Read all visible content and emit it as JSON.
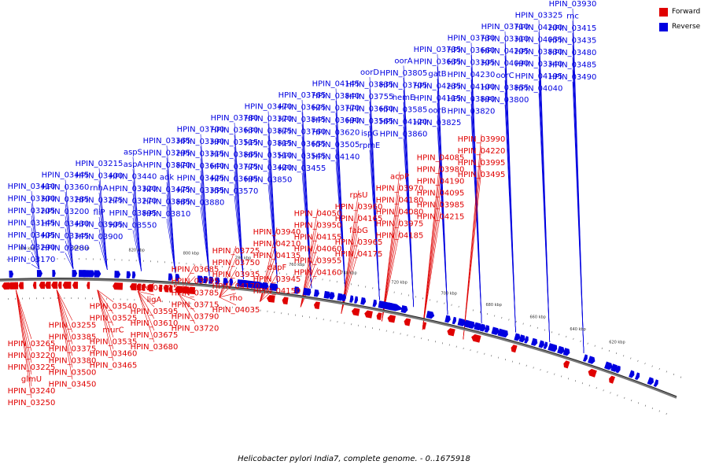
{
  "caption": "Helicobacter pylori India7, complete genome. - 0..1675918",
  "legend": {
    "forward": {
      "label": "Forward",
      "color": "#e00000"
    },
    "reverse": {
      "label": "Reverse",
      "color": "#0000e0"
    }
  },
  "scale_ticks": [
    "860 kbp",
    "840 kbp",
    "820 kbp",
    "800 kbp",
    "780 kbp",
    "760 kbp",
    "740 kbp",
    "720 kbp",
    "700 kbp",
    "680 kbp",
    "660 kbp",
    "640 kbp",
    "620 kbp"
  ],
  "reverse_labels": [
    "HPIN_03410",
    "HPIN_03300",
    "HPIN_03205",
    "HPIN_03145",
    "HPIN_03405",
    "HPIN_03290",
    "HPIN_03170",
    "HPIN_03445",
    "HPIN_03360",
    "HPIN_03285",
    "HPIN_03200",
    "HPIN_03430",
    "HPIN_03345",
    "HPIN_03280",
    "HPIN_03215",
    "HPIN_03400",
    "rnhA",
    "HPIN_03275",
    "fliP",
    "HPIN_03905",
    "HPIN_03900",
    "aspS",
    "aspA",
    "HPIN_03440",
    "HPIN_03320",
    "HPIN_03270",
    "HPIN_03895",
    "HPIN_03550",
    "HPIN_03365",
    "HPIN_03295",
    "HPIN_03870",
    "adk",
    "HPIN_03475",
    "HPIN_03885",
    "HPIN_03810",
    "HPIN_03700",
    "HPIN_03390",
    "HPIN_03315",
    "HPIN_03640",
    "HPIN_03425",
    "HPIN_03355",
    "HPIN_03880",
    "HPIN_03780",
    "HPIN_03630",
    "HPIN_03515",
    "HPIN_03865",
    "HPIN_03775",
    "HPIN_03695",
    "HPIN_03570",
    "HPIN_03470",
    "HPIN_03370",
    "HPIN_03875",
    "HPIN_03815",
    "HPIN_03510",
    "HPIN_03420",
    "HPIN_03850",
    "HPIN_03765",
    "HPIN_03625",
    "HPIN_03845",
    "HPIN_03760",
    "HPIN_03655",
    "HPIN_03545",
    "HPIN_03455",
    "HPIN_04145",
    "HPIN_03840",
    "HPIN_03770",
    "HPIN_03690",
    "HPIN_03620",
    "HPIN_03505",
    "HPIN_04140",
    "oorD",
    "HPIN_03835",
    "HPIN_03755",
    "HPIN_03650",
    "HPIN_03565",
    "ispG",
    "rpmE",
    "oorA",
    "HPIN_03805",
    "HPIN_03705",
    "hemE",
    "HPIN_03585",
    "HPIN_04120",
    "HPIN_03860",
    "HPIN_03735",
    "HPIN_03635",
    "gatB",
    "HPIN_04235",
    "HPIN_04115",
    "oorB",
    "HPIN_03825",
    "HPIN_03730",
    "HPIN_03660",
    "HPIN_03305",
    "HPIN_04230",
    "HPIN_04100",
    "HPIN_03890",
    "HPIN_03820",
    "HPIN_03710",
    "HPIN_03310",
    "HPIN_04205",
    "HPIN_04090",
    "oorC",
    "HPIN_03855",
    "HPIN_03800",
    "HPIN_03325",
    "HPIN_04200",
    "HPIN_04055",
    "HPIN_03830",
    "HPIN_03340",
    "HPIN_04195",
    "HPIN_04040",
    "HPIN_03930",
    "rnc",
    "HPIN_03415",
    "HPIN_03435",
    "HPIN_03480",
    "HPIN_03485",
    "HPIN_03490"
  ],
  "forward_labels": [
    "HPIN_03265",
    "HPIN_03220",
    "HPIN_03225",
    "glmU",
    "HPIN_03240",
    "HPIN_03250",
    "HPIN_03255",
    "HPIN_03385",
    "HPIN_03375",
    "HPIN_03380",
    "HPIN_03500",
    "HPIN_03450",
    "HPIN_03540",
    "HPIN_03525",
    "murC",
    "HPIN_03535",
    "HPIN_03460",
    "HPIN_03465",
    "HPIN_03615",
    "ligA",
    "HPIN_03595",
    "HPIN_03610",
    "HPIN_03675",
    "HPIN_03680",
    "HPIN_03685",
    "HPIN_03795",
    "HPIN_03785",
    "HPIN_03715",
    "HPIN_03790",
    "HPIN_03720",
    "HPIN_03725",
    "HPIN_03750",
    "HPIN_03935",
    "HPIN_04170",
    "rho",
    "HPIN_04035",
    "HPIN_03940",
    "HPIN_04210",
    "HPIN_04135",
    "dapF",
    "HPIN_03945",
    "HPIN_04150",
    "HPIN_04050",
    "HPIN_03950",
    "HPIN_04155",
    "HPIN_04060",
    "HPIN_03955",
    "HPIN_04160",
    "rpsU",
    "HPIN_03960",
    "HPIN_04165",
    "fabG",
    "HPIN_03965",
    "HPIN_04175",
    "acpP",
    "HPIN_03970",
    "HPIN_04180",
    "HPIN_04080",
    "HPIN_03975",
    "HPIN_04185",
    "HPIN_04085",
    "HPIN_03980",
    "HPIN_04190",
    "HPIN_04095",
    "HPIN_03985",
    "HPIN_04215",
    "HPIN_03990",
    "HPIN_04220",
    "HPIN_03995",
    "HPIN_03495"
  ]
}
